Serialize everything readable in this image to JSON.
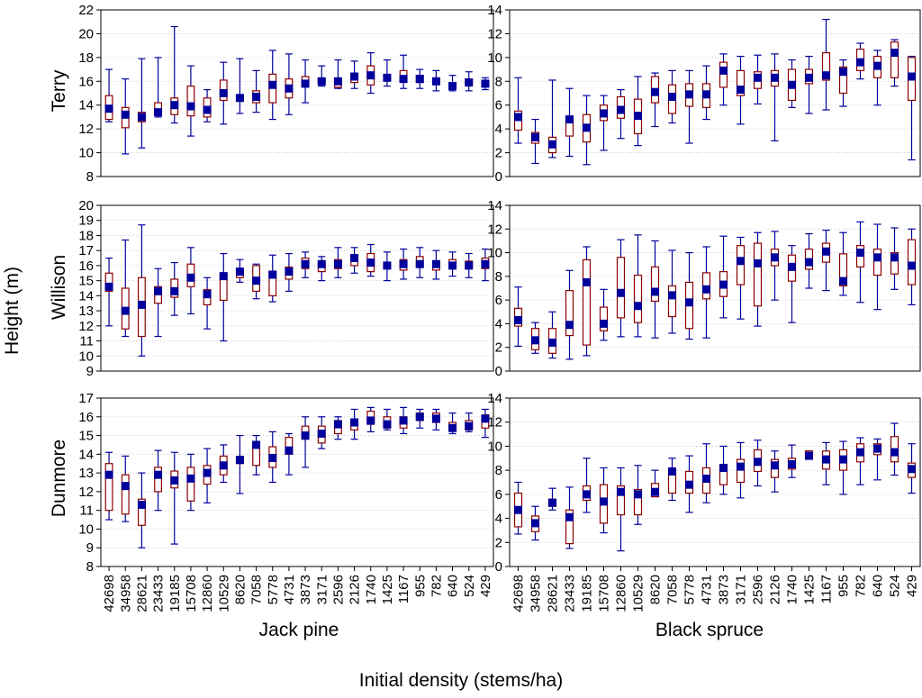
{
  "chart_data": {
    "type": "boxplot",
    "categories": [
      "42698",
      "34958",
      "28621",
      "23433",
      "19185",
      "15708",
      "12860",
      "10529",
      "8620",
      "7058",
      "5778",
      "4731",
      "3873",
      "3171",
      "2596",
      "2126",
      "1740",
      "1425",
      "1167",
      "955",
      "782",
      "640",
      "524",
      "429"
    ],
    "xlabel": "Initial density (stems/ha)",
    "ylabel": "Height (m)",
    "row_labels": [
      "Terry",
      "Willison",
      "Dunmore"
    ],
    "column_labels": [
      "Jack pine",
      "Black spruce"
    ],
    "box_format": "[whisker_min, q1, median, q3, whisker_max]",
    "colors": {
      "median": "#00009c",
      "box": "#8b0000",
      "whisker": "#00009c",
      "grid": "#c8c8c8"
    },
    "panels": [
      {
        "site": "Terry",
        "species": "Jack pine",
        "ylim": [
          8,
          22
        ],
        "yticks": [
          8,
          10,
          12,
          14,
          16,
          18,
          20,
          22
        ],
        "boxes": [
          [
            12.6,
            12.8,
            13.7,
            14.8,
            17.0
          ],
          [
            9.9,
            12.1,
            13.2,
            13.8,
            16.2
          ],
          [
            10.4,
            12.6,
            13.0,
            13.4,
            17.9
          ],
          [
            13.0,
            13.2,
            13.4,
            14.2,
            18.0
          ],
          [
            12.5,
            13.2,
            14.0,
            14.6,
            20.6
          ],
          [
            11.4,
            13.1,
            13.9,
            15.6,
            17.3
          ],
          [
            12.6,
            13.0,
            13.6,
            14.6,
            15.3
          ],
          [
            12.4,
            14.4,
            15.0,
            16.1,
            17.6
          ],
          [
            13.3,
            14.5,
            14.6,
            14.8,
            17.9
          ],
          [
            13.4,
            14.2,
            14.7,
            15.2,
            16.9
          ],
          [
            12.8,
            14.2,
            15.7,
            16.6,
            18.6
          ],
          [
            13.2,
            14.6,
            15.4,
            16.2,
            18.3
          ],
          [
            14.2,
            15.7,
            15.8,
            16.4,
            17.8
          ],
          [
            15.6,
            15.9,
            16.0,
            16.2,
            17.3
          ],
          [
            15.4,
            15.5,
            16.0,
            16.0,
            17.8
          ],
          [
            15.4,
            15.9,
            16.4,
            16.6,
            17.7
          ],
          [
            15.0,
            15.7,
            16.5,
            17.3,
            18.4
          ],
          [
            15.6,
            16.1,
            16.3,
            16.4,
            17.8
          ],
          [
            15.4,
            16.0,
            16.2,
            16.9,
            18.2
          ],
          [
            15.4,
            15.9,
            16.2,
            16.5,
            17.0
          ],
          [
            15.2,
            15.8,
            16.0,
            16.2,
            16.9
          ],
          [
            15.2,
            15.5,
            15.6,
            15.8,
            16.5
          ],
          [
            15.2,
            15.8,
            15.9,
            16.2,
            16.8
          ],
          [
            15.3,
            15.6,
            15.8,
            16.0,
            16.3
          ]
        ]
      },
      {
        "site": "Terry",
        "species": "Black spruce",
        "ylim": [
          0,
          14
        ],
        "yticks": [
          0,
          2,
          4,
          6,
          8,
          10,
          12,
          14
        ],
        "boxes": [
          [
            2.8,
            3.9,
            5.0,
            5.5,
            8.3
          ],
          [
            1.1,
            2.8,
            3.3,
            3.7,
            4.8
          ],
          [
            1.6,
            2.0,
            2.7,
            3.3,
            8.1
          ],
          [
            1.7,
            3.4,
            4.8,
            5.0,
            7.4
          ],
          [
            1.0,
            2.9,
            4.1,
            5.2,
            6.8
          ],
          [
            2.2,
            4.7,
            5.3,
            6.0,
            6.8
          ],
          [
            3.2,
            4.9,
            5.6,
            6.7,
            7.3
          ],
          [
            2.6,
            3.6,
            5.1,
            6.5,
            8.4
          ],
          [
            4.2,
            6.2,
            7.1,
            8.4,
            8.7
          ],
          [
            4.5,
            5.3,
            6.7,
            7.7,
            8.9
          ],
          [
            2.8,
            5.9,
            6.9,
            7.8,
            8.9
          ],
          [
            4.8,
            5.8,
            6.9,
            7.8,
            9.3
          ],
          [
            6.0,
            7.5,
            8.9,
            9.6,
            10.3
          ],
          [
            4.4,
            6.8,
            7.3,
            8.9,
            10.1
          ],
          [
            6.1,
            7.4,
            8.3,
            8.8,
            10.2
          ],
          [
            3.0,
            7.6,
            8.3,
            8.9,
            10.3
          ],
          [
            5.8,
            6.4,
            7.7,
            9.0,
            9.8
          ],
          [
            5.3,
            7.8,
            8.3,
            9.0,
            10.1
          ],
          [
            5.6,
            8.1,
            8.5,
            10.4,
            13.2
          ],
          [
            5.9,
            7.0,
            8.8,
            9.2,
            9.8
          ],
          [
            8.2,
            8.9,
            9.6,
            10.7,
            11.2
          ],
          [
            6.0,
            8.3,
            9.3,
            10.1,
            10.6
          ],
          [
            7.6,
            8.3,
            10.4,
            11.3,
            11.5
          ],
          [
            1.4,
            6.4,
            8.4,
            10.0,
            10.1
          ]
        ]
      },
      {
        "site": "Willison",
        "species": "Jack pine",
        "ylim": [
          9,
          20
        ],
        "yticks": [
          9,
          10,
          11,
          12,
          13,
          14,
          15,
          16,
          17,
          18,
          19,
          20
        ],
        "boxes": [
          [
            12.0,
            14.3,
            14.6,
            15.5,
            16.5
          ],
          [
            11.3,
            11.8,
            13.0,
            14.5,
            17.7
          ],
          [
            10.0,
            11.3,
            13.4,
            15.2,
            18.7
          ],
          [
            11.3,
            13.5,
            14.3,
            14.6,
            15.8
          ],
          [
            12.7,
            13.9,
            14.3,
            15.1,
            16.2
          ],
          [
            12.8,
            14.6,
            15.2,
            16.1,
            17.2
          ],
          [
            11.8,
            13.4,
            14.1,
            14.4,
            15.2
          ],
          [
            11.0,
            13.7,
            15.3,
            15.4,
            16.8
          ],
          [
            14.9,
            15.2,
            15.6,
            15.7,
            16.4
          ],
          [
            13.8,
            14.3,
            15.0,
            16.0,
            16.1
          ],
          [
            13.6,
            14.0,
            15.4,
            15.6,
            16.7
          ],
          [
            14.3,
            15.1,
            15.6,
            15.9,
            16.8
          ],
          [
            15.2,
            15.8,
            16.1,
            16.5,
            16.9
          ],
          [
            15.0,
            15.6,
            16.1,
            16.2,
            16.6
          ],
          [
            15.2,
            15.8,
            16.1,
            16.4,
            17.2
          ],
          [
            15.5,
            16.0,
            16.5,
            16.7,
            17.2
          ],
          [
            15.3,
            15.6,
            16.2,
            16.8,
            17.4
          ],
          [
            15.0,
            15.8,
            16.0,
            16.2,
            16.9
          ],
          [
            15.1,
            15.7,
            16.1,
            16.4,
            17.1
          ],
          [
            15.2,
            15.9,
            16.1,
            16.6,
            17.2
          ],
          [
            15.1,
            15.7,
            16.1,
            16.3,
            17.0
          ],
          [
            15.3,
            15.9,
            16.0,
            16.4,
            16.9
          ],
          [
            15.2,
            15.8,
            16.0,
            16.3,
            16.8
          ],
          [
            15.0,
            15.8,
            16.1,
            16.5,
            17.1
          ]
        ]
      },
      {
        "site": "Willison",
        "species": "Black spruce",
        "ylim": [
          0,
          14
        ],
        "yticks": [
          0,
          2,
          4,
          6,
          8,
          10,
          12,
          14
        ],
        "boxes": [
          [
            2.1,
            3.8,
            4.3,
            5.3,
            7.1
          ],
          [
            1.5,
            1.8,
            2.6,
            3.6,
            4.1
          ],
          [
            1.1,
            1.5,
            2.4,
            3.6,
            5.0
          ],
          [
            1.0,
            3.0,
            3.9,
            6.8,
            8.5
          ],
          [
            1.3,
            2.2,
            7.5,
            9.4,
            10.5
          ],
          [
            2.6,
            3.4,
            4.0,
            5.4,
            6.9
          ],
          [
            2.9,
            4.5,
            6.6,
            9.6,
            11.1
          ],
          [
            2.9,
            4.1,
            5.5,
            8.1,
            11.5
          ],
          [
            2.8,
            5.9,
            6.7,
            8.8,
            11.0
          ],
          [
            3.2,
            4.6,
            6.4,
            7.2,
            10.2
          ],
          [
            2.7,
            3.6,
            5.8,
            7.5,
            10.0
          ],
          [
            2.8,
            6.1,
            6.9,
            8.3,
            10.5
          ],
          [
            4.5,
            6.3,
            7.3,
            8.4,
            11.4
          ],
          [
            4.4,
            7.3,
            9.3,
            10.6,
            11.3
          ],
          [
            3.8,
            5.5,
            9.1,
            10.8,
            11.7
          ],
          [
            6.0,
            8.9,
            9.6,
            10.3,
            11.8
          ],
          [
            4.1,
            7.6,
            8.8,
            9.8,
            10.6
          ],
          [
            7.0,
            8.6,
            9.2,
            10.3,
            11.6
          ],
          [
            6.8,
            9.2,
            10.1,
            10.8,
            11.9
          ],
          [
            6.4,
            7.2,
            7.6,
            9.9,
            11.7
          ],
          [
            5.8,
            8.8,
            10.0,
            10.6,
            12.6
          ],
          [
            5.2,
            8.1,
            9.6,
            10.3,
            12.4
          ],
          [
            6.9,
            8.2,
            9.6,
            10.0,
            12.1
          ],
          [
            5.6,
            7.3,
            8.9,
            11.1,
            12.0
          ]
        ]
      },
      {
        "site": "Dunmore",
        "species": "Jack pine",
        "ylim": [
          8,
          17
        ],
        "yticks": [
          8,
          9,
          10,
          11,
          12,
          13,
          14,
          15,
          16,
          17
        ],
        "boxes": [
          [
            10.5,
            11.0,
            12.9,
            13.5,
            14.1
          ],
          [
            10.4,
            10.8,
            12.3,
            12.9,
            13.9
          ],
          [
            9.0,
            10.2,
            11.3,
            11.6,
            13.0
          ],
          [
            11.0,
            12.0,
            12.9,
            13.3,
            14.2
          ],
          [
            9.2,
            12.2,
            12.6,
            13.1,
            14.1
          ],
          [
            11.0,
            11.5,
            12.7,
            13.3,
            14.0
          ],
          [
            11.4,
            12.4,
            13.0,
            13.4,
            14.3
          ],
          [
            12.5,
            12.9,
            13.4,
            13.9,
            14.5
          ],
          [
            11.9,
            13.5,
            13.7,
            13.8,
            15.0
          ],
          [
            12.9,
            13.4,
            14.5,
            14.6,
            15.0
          ],
          [
            12.5,
            13.3,
            13.8,
            14.4,
            15.2
          ],
          [
            12.9,
            14.0,
            14.2,
            14.9,
            15.1
          ],
          [
            13.3,
            14.8,
            15.0,
            15.5,
            16.0
          ],
          [
            14.3,
            14.6,
            15.1,
            15.5,
            16.0
          ],
          [
            14.8,
            15.1,
            15.6,
            15.8,
            16.0
          ],
          [
            14.8,
            15.3,
            15.7,
            15.8,
            16.4
          ],
          [
            15.2,
            15.6,
            15.8,
            16.3,
            16.5
          ],
          [
            15.3,
            15.4,
            15.6,
            16.0,
            16.4
          ],
          [
            15.1,
            15.4,
            15.8,
            16.0,
            16.5
          ],
          [
            15.4,
            15.8,
            16.0,
            16.2,
            16.4
          ],
          [
            15.3,
            15.7,
            15.9,
            16.2,
            16.4
          ],
          [
            15.1,
            15.3,
            15.4,
            15.7,
            16.2
          ],
          [
            15.2,
            15.3,
            15.5,
            15.8,
            16.2
          ],
          [
            14.9,
            15.4,
            15.9,
            16.1,
            16.4
          ]
        ]
      },
      {
        "site": "Dunmore",
        "species": "Black spruce",
        "ylim": [
          0,
          14
        ],
        "yticks": [
          0,
          2,
          4,
          6,
          8,
          10,
          12,
          14
        ],
        "boxes": [
          [
            2.7,
            3.3,
            4.7,
            6.1,
            7.0
          ],
          [
            2.2,
            2.9,
            3.6,
            4.2,
            5.0
          ],
          [
            4.7,
            5.0,
            5.3,
            5.6,
            6.5
          ],
          [
            1.5,
            1.9,
            4.1,
            4.7,
            6.6
          ],
          [
            4.5,
            5.5,
            6.0,
            6.7,
            9.0
          ],
          [
            2.8,
            3.6,
            5.4,
            6.8,
            8.2
          ],
          [
            1.3,
            4.3,
            6.2,
            6.7,
            8.2
          ],
          [
            3.5,
            4.3,
            6.0,
            6.4,
            8.4
          ],
          [
            5.8,
            5.8,
            6.2,
            6.9,
            8.0
          ],
          [
            5.5,
            6.1,
            7.9,
            8.1,
            9.0
          ],
          [
            4.5,
            6.1,
            6.8,
            7.9,
            9.2
          ],
          [
            5.3,
            6.1,
            7.3,
            8.2,
            10.2
          ],
          [
            6.0,
            6.8,
            8.2,
            8.4,
            10.0
          ],
          [
            5.7,
            7.0,
            8.3,
            8.9,
            10.3
          ],
          [
            6.7,
            7.9,
            8.7,
            9.7,
            10.5
          ],
          [
            6.2,
            7.4,
            8.4,
            8.9,
            9.6
          ],
          [
            7.4,
            8.1,
            8.5,
            9.0,
            10.1
          ],
          [
            9.0,
            9.0,
            9.2,
            9.6,
            9.6
          ],
          [
            6.8,
            8.1,
            8.9,
            9.6,
            10.3
          ],
          [
            6.0,
            8.0,
            8.9,
            9.7,
            10.4
          ],
          [
            6.8,
            8.7,
            9.5,
            10.2,
            10.7
          ],
          [
            7.2,
            9.3,
            9.8,
            10.2,
            10.6
          ],
          [
            7.6,
            8.7,
            9.5,
            10.8,
            11.9
          ],
          [
            6.1,
            7.4,
            8.1,
            8.6,
            10.2
          ]
        ]
      }
    ]
  }
}
